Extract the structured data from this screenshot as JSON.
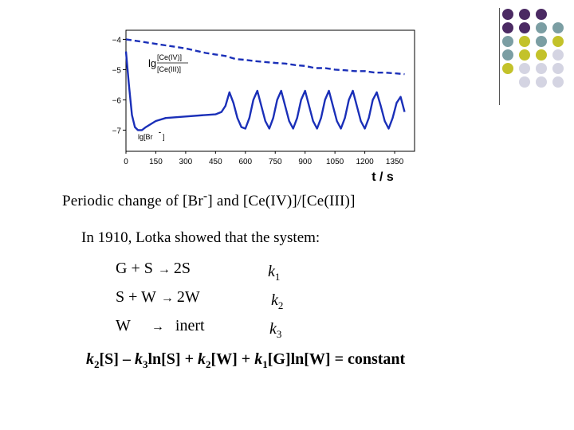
{
  "chart_data": {
    "type": "line",
    "xlabel": "t / s",
    "x_ticks": [
      0,
      150,
      300,
      450,
      600,
      750,
      900,
      1050,
      1200,
      1350
    ],
    "y_ticks": [
      -4,
      -5,
      -6,
      -7
    ],
    "xlim": [
      0,
      1450
    ],
    "ylim": [
      -7.7,
      -3.7
    ],
    "series": [
      {
        "name": "lg [Ce(IV)]/[Ce(III)]",
        "label_top": "[Ce(IV)]",
        "label_bottom": "[Ce(III)]",
        "label_prefix": "lg",
        "style": "dashed",
        "x": [
          0,
          100,
          200,
          300,
          400,
          450,
          500,
          550,
          600,
          650,
          700,
          750,
          800,
          850,
          900,
          950,
          1000,
          1050,
          1100,
          1150,
          1200,
          1250,
          1300,
          1350,
          1400
        ],
        "y": [
          -4.0,
          -4.1,
          -4.2,
          -4.3,
          -4.45,
          -4.5,
          -4.55,
          -4.65,
          -4.68,
          -4.72,
          -4.75,
          -4.78,
          -4.8,
          -4.85,
          -4.88,
          -4.95,
          -4.95,
          -5.0,
          -5.02,
          -5.05,
          -5.05,
          -5.1,
          -5.1,
          -5.12,
          -5.15
        ]
      },
      {
        "name": "lg[Br⁻]",
        "label": "lg[Br",
        "label_sup": "-",
        "label_end": "]",
        "style": "solid",
        "x": [
          0,
          15,
          30,
          45,
          60,
          80,
          100,
          150,
          200,
          300,
          400,
          450,
          480,
          500,
          520,
          540,
          560,
          580,
          600,
          620,
          640,
          660,
          680,
          700,
          720,
          740,
          760,
          780,
          800,
          820,
          840,
          860,
          880,
          900,
          920,
          940,
          960,
          980,
          1000,
          1020,
          1040,
          1060,
          1080,
          1100,
          1120,
          1140,
          1160,
          1180,
          1200,
          1220,
          1240,
          1260,
          1280,
          1300,
          1320,
          1340,
          1360,
          1380,
          1400
        ],
        "y": [
          -4.4,
          -5.5,
          -6.5,
          -6.9,
          -7.0,
          -7.0,
          -6.9,
          -6.7,
          -6.6,
          -6.55,
          -6.5,
          -6.48,
          -6.4,
          -6.2,
          -5.75,
          -6.1,
          -6.6,
          -6.9,
          -6.95,
          -6.6,
          -6.0,
          -5.7,
          -6.2,
          -6.7,
          -6.95,
          -6.6,
          -6.0,
          -5.7,
          -6.2,
          -6.7,
          -6.95,
          -6.6,
          -6.0,
          -5.7,
          -6.2,
          -6.7,
          -6.95,
          -6.6,
          -6.0,
          -5.7,
          -6.2,
          -6.7,
          -6.95,
          -6.6,
          -6.0,
          -5.7,
          -6.2,
          -6.7,
          -6.95,
          -6.6,
          -6.0,
          -5.75,
          -6.2,
          -6.7,
          -6.95,
          -6.6,
          -6.1,
          -5.9,
          -6.4
        ]
      }
    ]
  },
  "caption": {
    "text": "Periodic change of [Br",
    "sup": "-",
    "text_end": "] and [Ce(IV)]/[Ce(III)]"
  },
  "intro": "In 1910, Lotka showed that the system:",
  "reactions": [
    {
      "lhs": "G + S",
      "rhs": "2S",
      "k": "k",
      "k_sub": "1"
    },
    {
      "lhs": "S + W",
      "rhs": "2W",
      "k": "k",
      "k_sub": "2"
    },
    {
      "lhs": "W",
      "rhs": "inert",
      "k": "k",
      "k_sub": "3"
    }
  ],
  "arrow": "→",
  "equation": {
    "t1": "k",
    "s1": "2",
    "t2": "[S] – ",
    "t3": "k",
    "s3": "3",
    "t4": "ln[S] + ",
    "t5": "k",
    "s5": "2",
    "t6": "[W] + ",
    "t7": "k",
    "s7": "1",
    "t8": "[G]ln[W] = constant"
  },
  "colors": {
    "line": "#1a2fb8",
    "dot_purple": "#4b2a63",
    "dot_teal": "#7b9ea3",
    "dot_yellow": "#c3c22a",
    "dot_lavender": "#d4d4e2"
  }
}
